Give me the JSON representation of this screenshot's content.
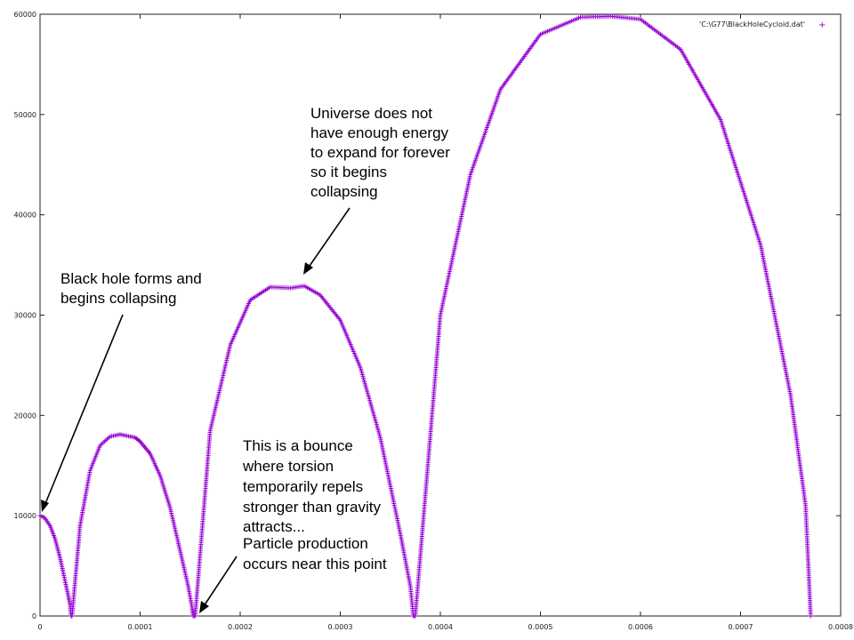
{
  "chart_data": {
    "type": "scatter",
    "title": "",
    "xlabel": "",
    "ylabel": "",
    "xlim": [
      0,
      0.0008
    ],
    "ylim": [
      0,
      60000
    ],
    "grid": false,
    "legend_position": "top-right",
    "x_ticks": [
      "0",
      "0.0001",
      "0.0002",
      "0.0003",
      "0.0004",
      "0.0005",
      "0.0006",
      "0.0007",
      "0.0008"
    ],
    "y_ticks": [
      "0",
      "10000",
      "20000",
      "30000",
      "40000",
      "50000",
      "60000"
    ],
    "series": [
      {
        "name": "'C:\\G77\\BlackHoleCycloid.dat'",
        "color": "#9400d3",
        "marker": "plus",
        "x": [
          0,
          5e-06,
          1e-05,
          1.5e-05,
          2e-05,
          2.5e-05,
          2.8e-05,
          3e-05,
          3.1e-05,
          3.2e-05,
          4e-05,
          5e-05,
          6e-05,
          7e-05,
          8e-05,
          9e-05,
          9.5e-05,
          0.0001,
          0.00011,
          0.00012,
          0.00013,
          0.00014,
          0.000148,
          0.000152,
          0.000153,
          0.000155,
          0.00017,
          0.00019,
          0.00021,
          0.00023,
          0.00025,
          0.000264,
          0.00028,
          0.0003,
          0.00032,
          0.00034,
          0.00036,
          0.00037,
          0.000373,
          0.000375,
          0.0004,
          0.00043,
          0.00046,
          0.0005,
          0.00054,
          0.00057,
          0.0006,
          0.00064,
          0.00068,
          0.00072,
          0.00075,
          0.000765,
          0.00077
        ],
        "y": [
          10000,
          9750,
          9000,
          7700,
          5800,
          3500,
          2100,
          1100,
          0,
          0,
          9000,
          14500,
          17000,
          17900,
          18100,
          17900,
          17800,
          17400,
          16200,
          14000,
          10800,
          6500,
          3000,
          800,
          0,
          0,
          18500,
          27000,
          31500,
          32800,
          32700,
          32900,
          32000,
          29500,
          24800,
          17800,
          8200,
          3000,
          0,
          0,
          30000,
          44000,
          52500,
          58000,
          59700,
          59800,
          59500,
          56500,
          49500,
          37000,
          22000,
          11000,
          0
        ]
      }
    ],
    "annotations": [
      {
        "lines": [
          "Universe does not",
          "have enough energy",
          "to expand for forever",
          "so it begins",
          "collapsing"
        ],
        "points_to": [
          0.000265,
          33000
        ]
      },
      {
        "lines": [
          "Black hole forms and",
          "begins collapsing"
        ],
        "points_to": [
          0,
          10000
        ]
      },
      {
        "lines": [
          "This is a bounce",
          "where torsion",
          "temporarily repels",
          "stronger than gravity",
          "attracts...",
          "Particle production",
          "occurs near this point"
        ],
        "points_to": [
          0.000155,
          0
        ]
      }
    ]
  }
}
